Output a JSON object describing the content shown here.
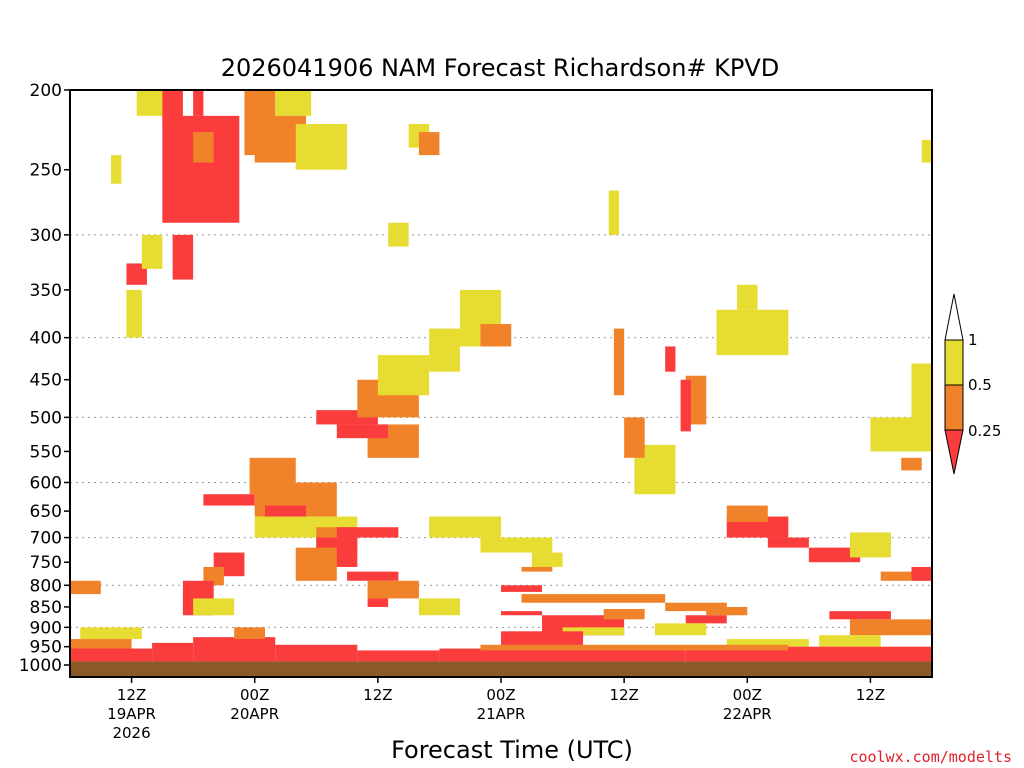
{
  "chart_data": {
    "type": "heatmap",
    "title": "2026041906 NAM Forecast Richardson# KPVD",
    "xlabel": "Forecast Time (UTC)",
    "ylabel": "",
    "credit": "coolwx.com/modelts",
    "y_axis": {
      "unit": "hPa",
      "range": [
        1000,
        200
      ],
      "ticks": [
        "200",
        "250",
        "300",
        "350",
        "400",
        "450",
        "500",
        "550",
        "600",
        "650",
        "700",
        "750",
        "800",
        "850",
        "900",
        "950",
        "1000"
      ],
      "gridlines": [
        300,
        400,
        500,
        600,
        700,
        800,
        900
      ]
    },
    "x_axis": {
      "range_hours": [
        0,
        84
      ],
      "ticks": [
        {
          "hour": 6,
          "label": "12Z",
          "sub": "19APR",
          "sub2": "2026"
        },
        {
          "hour": 18,
          "label": "00Z",
          "sub": "20APR",
          "sub2": ""
        },
        {
          "hour": 30,
          "label": "12Z",
          "sub": "",
          "sub2": ""
        },
        {
          "hour": 42,
          "label": "00Z",
          "sub": "21APR",
          "sub2": ""
        },
        {
          "hour": 54,
          "label": "12Z",
          "sub": "",
          "sub2": ""
        },
        {
          "hour": 66,
          "label": "00Z",
          "sub": "22APR",
          "sub2": ""
        },
        {
          "hour": 78,
          "label": "12Z",
          "sub": "",
          "sub2": ""
        }
      ]
    },
    "legend": {
      "placement": "right",
      "levels": [
        "1",
        "0.5",
        "0.25"
      ],
      "classes": [
        {
          "range": "> 1",
          "color": "#ffffff"
        },
        {
          "range": "0.5 - 1",
          "color": "#e6dc32"
        },
        {
          "range": "0.25 - 0.5",
          "color": "#f0822a"
        },
        {
          "range": "< 0.25",
          "color": "#fa3c3c"
        }
      ]
    },
    "colors": {
      "low": "#fa3c3c",
      "mid": "#f0822a",
      "high": "#e6dc32",
      "ground": "#8b5a2b",
      "credit": "#e0202a"
    },
    "regions": [
      {
        "cls": "high",
        "hours": [
          6.5,
          9.5
        ],
        "p": [
          200,
          215
        ]
      },
      {
        "cls": "low",
        "hours": [
          9,
          11
        ],
        "p": [
          200,
          220
        ]
      },
      {
        "cls": "low",
        "hours": [
          12,
          13
        ],
        "p": [
          200,
          215
        ]
      },
      {
        "cls": "mid",
        "hours": [
          17,
          20
        ],
        "p": [
          200,
          240
        ]
      },
      {
        "cls": "high",
        "hours": [
          20,
          23.5
        ],
        "p": [
          200,
          215
        ]
      },
      {
        "cls": "low",
        "hours": [
          9,
          16.5
        ],
        "p": [
          215,
          290
        ]
      },
      {
        "cls": "mid",
        "hours": [
          12,
          14
        ],
        "p": [
          225,
          245
        ]
      },
      {
        "cls": "mid",
        "hours": [
          18,
          23
        ],
        "p": [
          215,
          245
        ]
      },
      {
        "cls": "high",
        "hours": [
          22,
          27
        ],
        "p": [
          220,
          250
        ]
      },
      {
        "cls": "high",
        "hours": [
          4,
          5
        ],
        "p": [
          240,
          260
        ]
      },
      {
        "cls": "high",
        "hours": [
          33,
          35
        ],
        "p": [
          220,
          235
        ]
      },
      {
        "cls": "mid",
        "hours": [
          34,
          36
        ],
        "p": [
          225,
          240
        ]
      },
      {
        "cls": "low",
        "hours": [
          10,
          12
        ],
        "p": [
          300,
          340
        ]
      },
      {
        "cls": "low",
        "hours": [
          5.5,
          7.5
        ],
        "p": [
          325,
          345
        ]
      },
      {
        "cls": "high",
        "hours": [
          7,
          9
        ],
        "p": [
          300,
          330
        ]
      },
      {
        "cls": "high",
        "hours": [
          5.5,
          7
        ],
        "p": [
          350,
          400
        ]
      },
      {
        "cls": "high",
        "hours": [
          31,
          33
        ],
        "p": [
          290,
          310
        ]
      },
      {
        "cls": "high",
        "hours": [
          52.5,
          53.5
        ],
        "p": [
          265,
          300
        ]
      },
      {
        "cls": "high",
        "hours": [
          83,
          84
        ],
        "p": [
          230,
          245
        ]
      },
      {
        "cls": "high",
        "hours": [
          38,
          42
        ],
        "p": [
          350,
          410
        ]
      },
      {
        "cls": "high",
        "hours": [
          35,
          38
        ],
        "p": [
          390,
          440
        ]
      },
      {
        "cls": "mid",
        "hours": [
          40,
          43
        ],
        "p": [
          385,
          410
        ]
      },
      {
        "cls": "high",
        "hours": [
          63,
          70
        ],
        "p": [
          370,
          420
        ]
      },
      {
        "cls": "high",
        "hours": [
          65,
          67
        ],
        "p": [
          345,
          370
        ]
      },
      {
        "cls": "mid",
        "hours": [
          53,
          54
        ],
        "p": [
          390,
          470
        ]
      },
      {
        "cls": "low",
        "hours": [
          58,
          59
        ],
        "p": [
          410,
          440
        ]
      },
      {
        "cls": "mid",
        "hours": [
          60,
          62
        ],
        "p": [
          445,
          510
        ]
      },
      {
        "cls": "low",
        "hours": [
          59.5,
          60.5
        ],
        "p": [
          450,
          520
        ]
      },
      {
        "cls": "high",
        "hours": [
          55,
          59
        ],
        "p": [
          540,
          620
        ]
      },
      {
        "cls": "mid",
        "hours": [
          54,
          56
        ],
        "p": [
          500,
          560
        ]
      },
      {
        "cls": "high",
        "hours": [
          82,
          84
        ],
        "p": [
          430,
          550
        ]
      },
      {
        "cls": "high",
        "hours": [
          78,
          82
        ],
        "p": [
          500,
          550
        ]
      },
      {
        "cls": "mid",
        "hours": [
          81,
          83
        ],
        "p": [
          560,
          580
        ]
      },
      {
        "cls": "low",
        "hours": [
          24,
          30
        ],
        "p": [
          490,
          510
        ]
      },
      {
        "cls": "mid",
        "hours": [
          28,
          34
        ],
        "p": [
          450,
          500
        ]
      },
      {
        "cls": "high",
        "hours": [
          30,
          35
        ],
        "p": [
          420,
          470
        ]
      },
      {
        "cls": "mid",
        "hours": [
          29,
          34
        ],
        "p": [
          510,
          560
        ]
      },
      {
        "cls": "low",
        "hours": [
          26,
          31
        ],
        "p": [
          510,
          530
        ]
      },
      {
        "cls": "mid",
        "hours": [
          17.5,
          22
        ],
        "p": [
          560,
          620
        ]
      },
      {
        "cls": "low",
        "hours": [
          13,
          18
        ],
        "p": [
          620,
          640
        ]
      },
      {
        "cls": "mid",
        "hours": [
          18,
          26
        ],
        "p": [
          600,
          660
        ]
      },
      {
        "cls": "low",
        "hours": [
          19,
          23
        ],
        "p": [
          640,
          670
        ]
      },
      {
        "cls": "high",
        "hours": [
          18,
          28
        ],
        "p": [
          660,
          700
        ]
      },
      {
        "cls": "mid",
        "hours": [
          24,
          28
        ],
        "p": [
          680,
          720
        ]
      },
      {
        "cls": "low",
        "hours": [
          24,
          28
        ],
        "p": [
          700,
          760
        ]
      },
      {
        "cls": "mid",
        "hours": [
          22,
          26
        ],
        "p": [
          720,
          790
        ]
      },
      {
        "cls": "low",
        "hours": [
          26,
          32
        ],
        "p": [
          680,
          700
        ]
      },
      {
        "cls": "high",
        "hours": [
          35,
          42
        ],
        "p": [
          660,
          700
        ]
      },
      {
        "cls": "high",
        "hours": [
          40,
          47
        ],
        "p": [
          700,
          730
        ]
      },
      {
        "cls": "high",
        "hours": [
          45,
          48
        ],
        "p": [
          730,
          760
        ]
      },
      {
        "cls": "mid",
        "hours": [
          44,
          47
        ],
        "p": [
          760,
          770
        ]
      },
      {
        "cls": "low",
        "hours": [
          14,
          17
        ],
        "p": [
          730,
          780
        ]
      },
      {
        "cls": "mid",
        "hours": [
          13,
          15
        ],
        "p": [
          760,
          800
        ]
      },
      {
        "cls": "low",
        "hours": [
          11,
          14
        ],
        "p": [
          790,
          870
        ]
      },
      {
        "cls": "high",
        "hours": [
          12,
          16
        ],
        "p": [
          830,
          870
        ]
      },
      {
        "cls": "low",
        "hours": [
          27,
          32
        ],
        "p": [
          770,
          790
        ]
      },
      {
        "cls": "mid",
        "hours": [
          29,
          34
        ],
        "p": [
          790,
          830
        ]
      },
      {
        "cls": "low",
        "hours": [
          29,
          31
        ],
        "p": [
          830,
          850
        ]
      },
      {
        "cls": "high",
        "hours": [
          34,
          38
        ],
        "p": [
          830,
          870
        ]
      },
      {
        "cls": "low",
        "hours": [
          42,
          46
        ],
        "p": [
          800,
          815
        ]
      },
      {
        "cls": "low",
        "hours": [
          42,
          46
        ],
        "p": [
          860,
          870
        ]
      },
      {
        "cls": "mid",
        "hours": [
          44,
          58
        ],
        "p": [
          820,
          840
        ]
      },
      {
        "cls": "low",
        "hours": [
          46,
          54
        ],
        "p": [
          870,
          920
        ]
      },
      {
        "cls": "mid",
        "hours": [
          52,
          56
        ],
        "p": [
          855,
          880
        ]
      },
      {
        "cls": "high",
        "hours": [
          48,
          54
        ],
        "p": [
          900,
          920
        ]
      },
      {
        "cls": "low",
        "hours": [
          42,
          50
        ],
        "p": [
          910,
          950
        ]
      },
      {
        "cls": "mid",
        "hours": [
          58,
          64
        ],
        "p": [
          840,
          860
        ]
      },
      {
        "cls": "low",
        "hours": [
          60,
          64
        ],
        "p": [
          870,
          890
        ]
      },
      {
        "cls": "high",
        "hours": [
          57,
          62
        ],
        "p": [
          890,
          920
        ]
      },
      {
        "cls": "low",
        "hours": [
          64,
          70
        ],
        "p": [
          660,
          700
        ]
      },
      {
        "cls": "mid",
        "hours": [
          64,
          68
        ],
        "p": [
          640,
          670
        ]
      },
      {
        "cls": "low",
        "hours": [
          68,
          72
        ],
        "p": [
          700,
          720
        ]
      },
      {
        "cls": "low",
        "hours": [
          72,
          77
        ],
        "p": [
          720,
          750
        ]
      },
      {
        "cls": "high",
        "hours": [
          76,
          80
        ],
        "p": [
          690,
          740
        ]
      },
      {
        "cls": "mid",
        "hours": [
          79,
          84
        ],
        "p": [
          770,
          790
        ]
      },
      {
        "cls": "low",
        "hours": [
          82,
          84
        ],
        "p": [
          760,
          790
        ]
      },
      {
        "cls": "low",
        "hours": [
          74,
          80
        ],
        "p": [
          860,
          880
        ]
      },
      {
        "cls": "mid",
        "hours": [
          76,
          84
        ],
        "p": [
          880,
          920
        ]
      },
      {
        "cls": "high",
        "hours": [
          73,
          79
        ],
        "p": [
          920,
          950
        ]
      },
      {
        "cls": "mid",
        "hours": [
          62,
          66
        ],
        "p": [
          850,
          870
        ]
      },
      {
        "cls": "high",
        "hours": [
          64,
          72
        ],
        "p": [
          930,
          950
        ]
      },
      {
        "cls": "mid",
        "hours": [
          0,
          3
        ],
        "p": [
          790,
          820
        ]
      },
      {
        "cls": "high",
        "hours": [
          1,
          7
        ],
        "p": [
          900,
          930
        ]
      },
      {
        "cls": "mid",
        "hours": [
          0,
          6
        ],
        "p": [
          930,
          960
        ]
      },
      {
        "cls": "low",
        "hours": [
          0,
          8
        ],
        "p": [
          955,
          990
        ]
      },
      {
        "cls": "low",
        "hours": [
          8,
          12
        ],
        "p": [
          940,
          990
        ]
      },
      {
        "cls": "low",
        "hours": [
          12,
          20
        ],
        "p": [
          925,
          990
        ]
      },
      {
        "cls": "mid",
        "hours": [
          16,
          19
        ],
        "p": [
          900,
          930
        ]
      },
      {
        "cls": "low",
        "hours": [
          20,
          28
        ],
        "p": [
          945,
          990
        ]
      },
      {
        "cls": "low",
        "hours": [
          28,
          36
        ],
        "p": [
          960,
          990
        ]
      },
      {
        "cls": "low",
        "hours": [
          36,
          60
        ],
        "p": [
          955,
          990
        ]
      },
      {
        "cls": "low",
        "hours": [
          60,
          84
        ],
        "p": [
          950,
          990
        ]
      },
      {
        "cls": "mid",
        "hours": [
          40,
          70
        ],
        "p": [
          945,
          960
        ]
      }
    ],
    "ground": {
      "hours": [
        0,
        84
      ],
      "p": [
        990,
        1000
      ]
    }
  }
}
